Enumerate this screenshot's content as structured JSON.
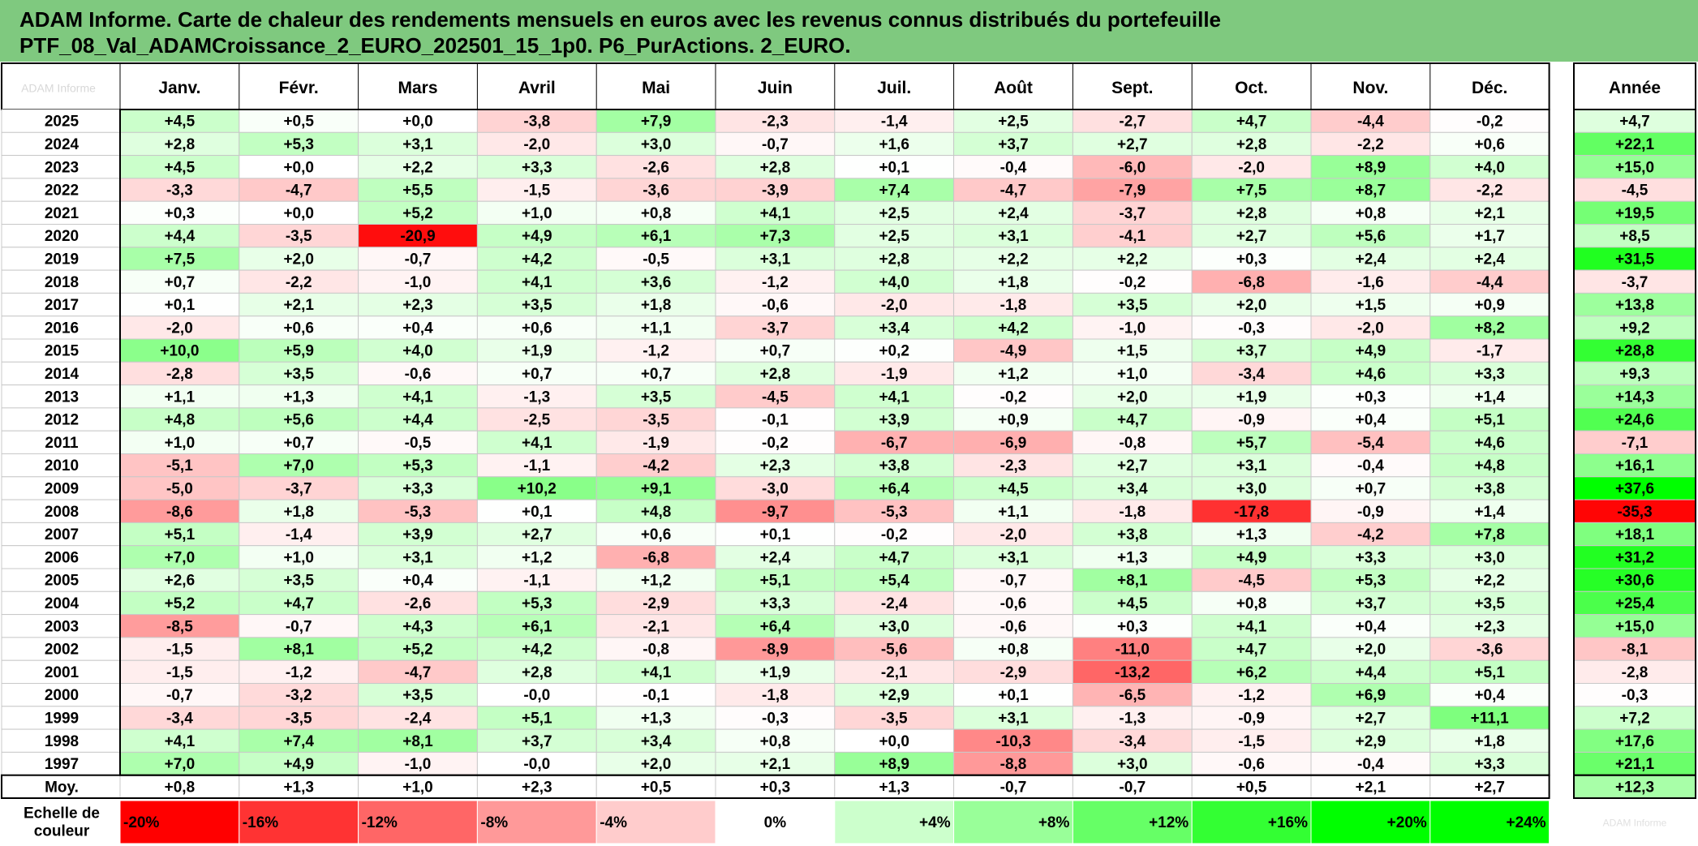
{
  "title": {
    "line1": "ADAM Informe. Carte de chaleur des rendements mensuels en euros avec les revenus connus distribués du portefeuille",
    "line2": "PTF_08_Val_ADAMCroissance_2_EURO_202501_15_1p0. P6_PurActions. 2_EURO."
  },
  "chart_data": {
    "type": "heatmap",
    "corner_label": "ADAM Informe",
    "month_headers": [
      "Janv.",
      "Févr.",
      "Mars",
      "Avril",
      "Mai",
      "Juin",
      "Juil.",
      "Août",
      "Sept.",
      "Oct.",
      "Nov.",
      "Déc."
    ],
    "year_header": "Année",
    "rows": [
      {
        "year": "2025",
        "months": [
          "+4,5",
          "+0,5",
          "+0,0",
          "-3,8",
          "+7,9",
          "-2,3",
          "-1,4",
          "+2,5",
          "-2,7",
          "+4,7",
          "-4,4",
          "-0,2"
        ],
        "annual": "+4,7"
      },
      {
        "year": "2024",
        "months": [
          "+2,8",
          "+5,3",
          "+3,1",
          "-2,0",
          "+3,0",
          "-0,7",
          "+1,6",
          "+3,7",
          "+2,7",
          "+2,8",
          "-2,2",
          "+0,6"
        ],
        "annual": "+22,1"
      },
      {
        "year": "2023",
        "months": [
          "+4,5",
          "+0,0",
          "+2,2",
          "+3,3",
          "-2,6",
          "+2,8",
          "+0,1",
          "-0,4",
          "-6,0",
          "-2,0",
          "+8,9",
          "+4,0"
        ],
        "annual": "+15,0"
      },
      {
        "year": "2022",
        "months": [
          "-3,3",
          "-4,7",
          "+5,5",
          "-1,5",
          "-3,6",
          "-3,9",
          "+7,4",
          "-4,7",
          "-7,9",
          "+7,5",
          "+8,7",
          "-2,2"
        ],
        "annual": "-4,5"
      },
      {
        "year": "2021",
        "months": [
          "+0,3",
          "+0,0",
          "+5,2",
          "+1,0",
          "+0,8",
          "+4,1",
          "+2,5",
          "+2,4",
          "-3,7",
          "+2,8",
          "+0,8",
          "+2,1"
        ],
        "annual": "+19,5"
      },
      {
        "year": "2020",
        "months": [
          "+4,4",
          "-3,5",
          "-20,9",
          "+4,9",
          "+6,1",
          "+7,3",
          "+2,5",
          "+3,1",
          "-4,1",
          "+2,7",
          "+5,6",
          "+1,7"
        ],
        "annual": "+8,5"
      },
      {
        "year": "2019",
        "months": [
          "+7,5",
          "+2,0",
          "-0,7",
          "+4,2",
          "-0,5",
          "+3,1",
          "+2,8",
          "+2,2",
          "+2,2",
          "+0,3",
          "+2,4",
          "+2,4"
        ],
        "annual": "+31,5"
      },
      {
        "year": "2018",
        "months": [
          "+0,7",
          "-2,2",
          "-1,0",
          "+4,1",
          "+3,6",
          "-1,2",
          "+4,0",
          "+1,8",
          "-0,2",
          "-6,8",
          "-1,6",
          "-4,4"
        ],
        "annual": "-3,7"
      },
      {
        "year": "2017",
        "months": [
          "+0,1",
          "+2,1",
          "+2,3",
          "+3,5",
          "+1,8",
          "-0,6",
          "-2,0",
          "-1,8",
          "+3,5",
          "+2,0",
          "+1,5",
          "+0,9"
        ],
        "annual": "+13,8"
      },
      {
        "year": "2016",
        "months": [
          "-2,0",
          "+0,6",
          "+0,4",
          "+0,6",
          "+1,1",
          "-3,7",
          "+3,4",
          "+4,2",
          "-1,0",
          "-0,3",
          "-2,0",
          "+8,2"
        ],
        "annual": "+9,2"
      },
      {
        "year": "2015",
        "months": [
          "+10,0",
          "+5,9",
          "+4,0",
          "+1,9",
          "-1,2",
          "+0,7",
          "+0,2",
          "-4,9",
          "+1,5",
          "+3,7",
          "+4,9",
          "-1,7"
        ],
        "annual": "+28,8"
      },
      {
        "year": "2014",
        "months": [
          "-2,8",
          "+3,5",
          "-0,6",
          "+0,7",
          "+0,7",
          "+2,8",
          "-1,9",
          "+1,2",
          "+1,0",
          "-3,4",
          "+4,6",
          "+3,3"
        ],
        "annual": "+9,3"
      },
      {
        "year": "2013",
        "months": [
          "+1,1",
          "+1,3",
          "+4,1",
          "-1,3",
          "+3,5",
          "-4,5",
          "+4,1",
          "-0,2",
          "+2,0",
          "+1,9",
          "+0,3",
          "+1,4"
        ],
        "annual": "+14,3"
      },
      {
        "year": "2012",
        "months": [
          "+4,8",
          "+5,6",
          "+4,4",
          "-2,5",
          "-3,5",
          "-0,1",
          "+3,9",
          "+0,9",
          "+4,7",
          "-0,9",
          "+0,4",
          "+5,1"
        ],
        "annual": "+24,6"
      },
      {
        "year": "2011",
        "months": [
          "+1,0",
          "+0,7",
          "-0,5",
          "+4,1",
          "-1,9",
          "-0,2",
          "-6,7",
          "-6,9",
          "-0,8",
          "+5,7",
          "-5,4",
          "+4,6"
        ],
        "annual": "-7,1"
      },
      {
        "year": "2010",
        "months": [
          "-5,1",
          "+7,0",
          "+5,3",
          "-1,1",
          "-4,2",
          "+2,3",
          "+3,8",
          "-2,3",
          "+2,7",
          "+3,1",
          "-0,4",
          "+4,8"
        ],
        "annual": "+16,1"
      },
      {
        "year": "2009",
        "months": [
          "-5,0",
          "-3,7",
          "+3,3",
          "+10,2",
          "+9,1",
          "-3,0",
          "+6,4",
          "+4,5",
          "+3,4",
          "+3,0",
          "+0,7",
          "+3,8"
        ],
        "annual": "+37,6"
      },
      {
        "year": "2008",
        "months": [
          "-8,6",
          "+1,8",
          "-5,3",
          "+0,1",
          "+4,8",
          "-9,7",
          "-5,3",
          "+1,1",
          "-1,8",
          "-17,8",
          "-0,9",
          "+1,4"
        ],
        "annual": "-35,3"
      },
      {
        "year": "2007",
        "months": [
          "+5,1",
          "-1,4",
          "+3,9",
          "+2,7",
          "+0,6",
          "+0,1",
          "-0,2",
          "-2,0",
          "+3,8",
          "+1,3",
          "-4,2",
          "+7,8"
        ],
        "annual": "+18,1"
      },
      {
        "year": "2006",
        "months": [
          "+7,0",
          "+1,0",
          "+3,1",
          "+1,2",
          "-6,8",
          "+2,4",
          "+4,7",
          "+3,1",
          "+1,3",
          "+4,9",
          "+3,3",
          "+3,0"
        ],
        "annual": "+31,2"
      },
      {
        "year": "2005",
        "months": [
          "+2,6",
          "+3,5",
          "+0,4",
          "-1,1",
          "+1,2",
          "+5,1",
          "+5,4",
          "-0,7",
          "+8,1",
          "-4,5",
          "+5,3",
          "+2,2"
        ],
        "annual": "+30,6"
      },
      {
        "year": "2004",
        "months": [
          "+5,2",
          "+4,7",
          "-2,6",
          "+5,3",
          "-2,9",
          "+3,3",
          "-2,4",
          "-0,6",
          "+4,5",
          "+0,8",
          "+3,7",
          "+3,5"
        ],
        "annual": "+25,4"
      },
      {
        "year": "2003",
        "months": [
          "-8,5",
          "-0,7",
          "+4,3",
          "+6,1",
          "-2,1",
          "+6,4",
          "+3,0",
          "-0,6",
          "+0,3",
          "+4,1",
          "+0,4",
          "+2,3"
        ],
        "annual": "+15,0"
      },
      {
        "year": "2002",
        "months": [
          "-1,5",
          "+8,1",
          "+5,2",
          "+4,2",
          "-0,8",
          "-8,9",
          "-5,6",
          "+0,8",
          "-11,0",
          "+4,7",
          "+2,0",
          "-3,6"
        ],
        "annual": "-8,1"
      },
      {
        "year": "2001",
        "months": [
          "-1,5",
          "-1,2",
          "-4,7",
          "+2,8",
          "+4,1",
          "+1,9",
          "-2,1",
          "-2,9",
          "-13,2",
          "+6,2",
          "+4,4",
          "+5,1"
        ],
        "annual": "-2,8"
      },
      {
        "year": "2000",
        "months": [
          "-0,7",
          "-3,2",
          "+3,5",
          "-0,0",
          "-0,1",
          "-1,8",
          "+2,9",
          "+0,1",
          "-6,5",
          "-1,2",
          "+6,9",
          "+0,4"
        ],
        "annual": "-0,3"
      },
      {
        "year": "1999",
        "months": [
          "-3,4",
          "-3,5",
          "-2,4",
          "+5,1",
          "+1,3",
          "-0,3",
          "-3,5",
          "+3,1",
          "-1,3",
          "-0,9",
          "+2,7",
          "+11,1"
        ],
        "annual": "+7,2"
      },
      {
        "year": "1998",
        "months": [
          "+4,1",
          "+7,4",
          "+8,1",
          "+3,7",
          "+3,4",
          "+0,8",
          "+0,0",
          "-10,3",
          "-3,4",
          "-1,5",
          "+2,9",
          "+1,8"
        ],
        "annual": "+17,6"
      },
      {
        "year": "1997",
        "months": [
          "+7,0",
          "+4,9",
          "-1,0",
          "-0,0",
          "+2,0",
          "+2,1",
          "+8,9",
          "-8,8",
          "+3,0",
          "-0,6",
          "-0,4",
          "+3,3"
        ],
        "annual": "+21,1"
      }
    ],
    "average": {
      "label": "Moy.",
      "months": [
        "+0,8",
        "+1,3",
        "+1,0",
        "+2,3",
        "+0,5",
        "+0,3",
        "+1,3",
        "-0,7",
        "-0,7",
        "+0,5",
        "+2,1",
        "+2,7"
      ],
      "annual": "+12,3"
    },
    "scale": {
      "label_line1": "Echelle de",
      "label_line2": "couleur",
      "items": [
        "-20%",
        "-16%",
        "-12%",
        "-8%",
        "-4%",
        "0%",
        "+4%",
        "+8%",
        "+12%",
        "+16%",
        "+20%",
        "+24%"
      ],
      "values": [
        -20,
        -16,
        -12,
        -8,
        -4,
        0,
        4,
        8,
        12,
        16,
        20,
        24
      ],
      "trailing_label": "ADAM Informe"
    },
    "colors": {
      "negative": "#ff0000",
      "neutral": "#ffffff",
      "positive": "#00ff00",
      "title_bg": "#7fc97f",
      "grid": "#c8c8c8"
    },
    "color_range": {
      "monthly_max": 22,
      "annual_max": 36
    }
  }
}
